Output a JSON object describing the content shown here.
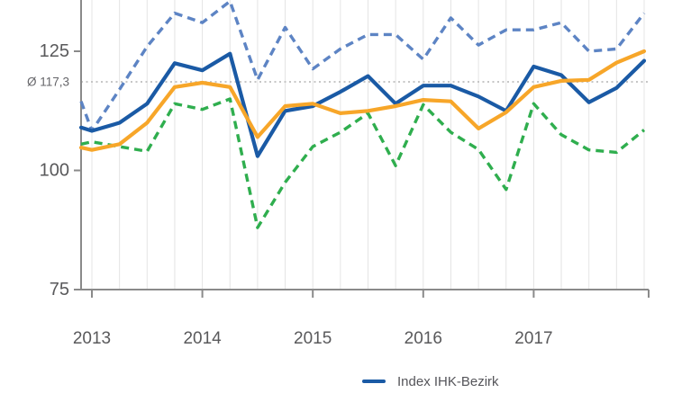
{
  "chart_data": {
    "type": "line",
    "title": "",
    "x_axis": {
      "ticks": [
        {
          "label": "2013",
          "index": 0
        },
        {
          "label": "2014",
          "index": 4
        },
        {
          "label": "2015",
          "index": 8
        },
        {
          "label": "2016",
          "index": 12
        },
        {
          "label": "2017",
          "index": 16
        }
      ],
      "points_per_year": 4,
      "grid": true
    },
    "y_axis": {
      "ticks": [
        {
          "label": "125",
          "value": 125
        },
        {
          "label": "100",
          "value": 100
        },
        {
          "label": "75",
          "value": 75
        }
      ]
    },
    "mean_line": {
      "label": "Ø 117,3",
      "value": 117.3,
      "style": "dotted"
    },
    "legend": [
      {
        "label": "Index IHK-Bezirk",
        "color": "#1a5aa5",
        "dashed": false
      }
    ],
    "series": [
      {
        "name": "upper-dashed-blue-line",
        "color": "#5d84c4",
        "dashed": true,
        "width": 3.4,
        "lead_in": 114.5,
        "values": [
          108.3,
          117,
          126,
          133,
          131,
          135.5,
          119,
          130,
          121.3,
          125.5,
          128.5,
          128.5,
          123.3,
          132,
          126.3,
          129.5,
          129.5,
          131,
          125,
          125.5,
          133
        ]
      },
      {
        "name": "green-dashed-line",
        "color": "#2fae4e",
        "dashed": true,
        "width": 3.4,
        "lead_in": 105.5,
        "values": [
          106,
          105,
          104,
          114,
          112.8,
          115,
          88,
          97.5,
          105,
          108,
          112,
          101,
          113.8,
          108,
          104.4,
          96,
          114,
          107.5,
          104.3,
          103.8,
          108.5
        ]
      },
      {
        "name": "index-ihk-bezirk-line",
        "color": "#1a5aa5",
        "dashed": false,
        "width": 4.2,
        "lead_in": 109,
        "values": [
          108.3,
          110,
          114,
          122.5,
          121,
          124.5,
          103,
          112.5,
          113.5,
          116.5,
          119.8,
          114,
          117.8,
          117.8,
          115.5,
          112.5,
          121.8,
          120,
          114.3,
          117.3,
          123
        ]
      },
      {
        "name": "orange-line",
        "color": "#f7a629",
        "dashed": false,
        "width": 4.2,
        "lead_in": 104.8,
        "values": [
          104.3,
          105.5,
          110,
          117.5,
          118.4,
          117.5,
          107,
          113.5,
          114,
          112,
          112.5,
          113.5,
          114.8,
          114.5,
          108.8,
          112.2,
          117.5,
          118.8,
          119,
          122.6,
          125
        ]
      }
    ],
    "style": {
      "grid_color": "#e4e4e4",
      "axis_color": "#8a8a8a",
      "mean_line_color": "#c6c6c6",
      "tick_text_color": "#59595b"
    }
  }
}
